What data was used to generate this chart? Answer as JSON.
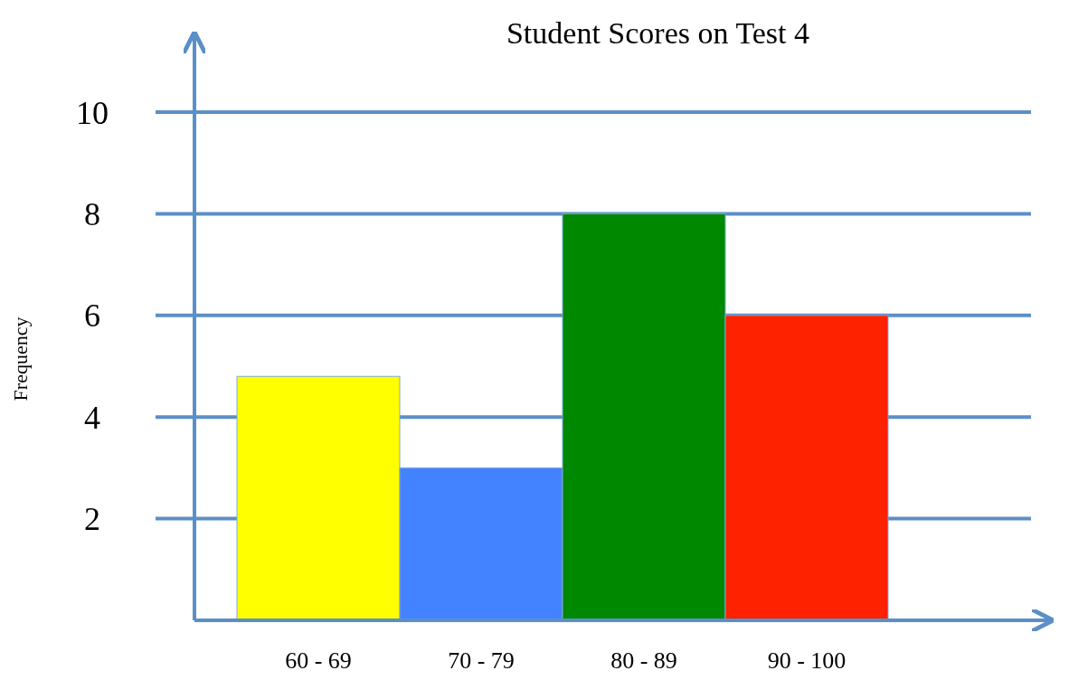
{
  "chart_data": {
    "type": "bar",
    "title": "Student Scores on Test 4",
    "ylabel": "Frequency",
    "categories": [
      "60 - 69",
      "70 - 79",
      "80 - 89",
      "90 - 100"
    ],
    "values": [
      4.8,
      3,
      8,
      6
    ],
    "colors": [
      "#ffff00",
      "#4483ff",
      "#008800",
      "#ff2200"
    ],
    "ylim": [
      0,
      10
    ],
    "yticks": [
      2,
      4,
      6,
      8,
      10
    ],
    "grid": "y"
  }
}
